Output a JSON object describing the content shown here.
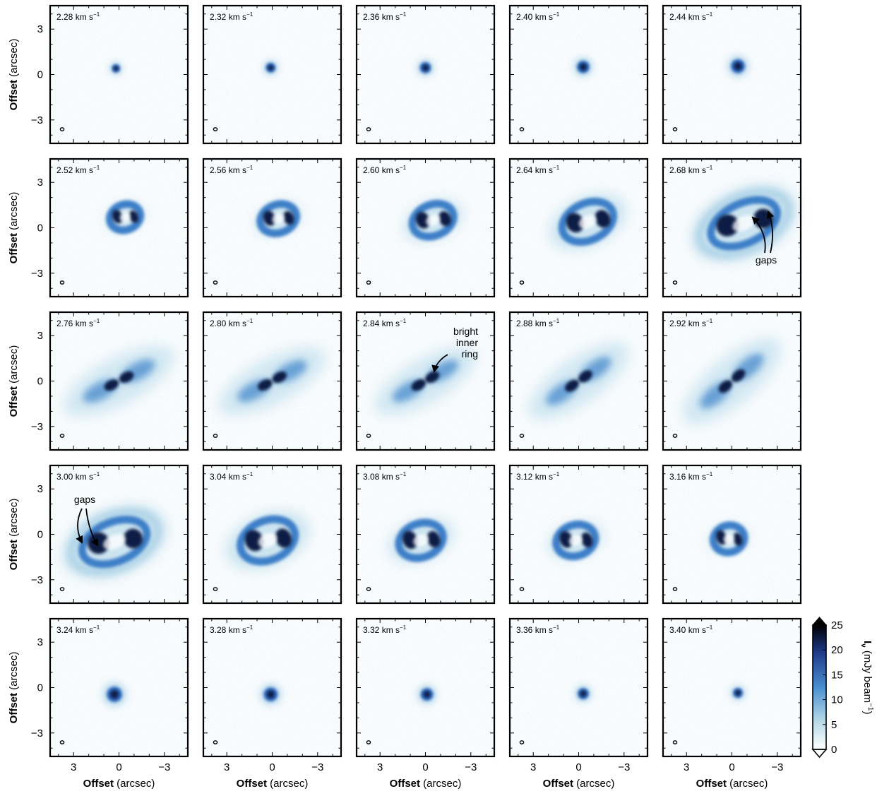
{
  "figure": {
    "velocity_unit_prefix": "km s",
    "velocity_unit_exp": "−1",
    "panels": [
      {
        "velocity": "2.28"
      },
      {
        "velocity": "2.32"
      },
      {
        "velocity": "2.36"
      },
      {
        "velocity": "2.40"
      },
      {
        "velocity": "2.44"
      },
      {
        "velocity": "2.52"
      },
      {
        "velocity": "2.56"
      },
      {
        "velocity": "2.60"
      },
      {
        "velocity": "2.64"
      },
      {
        "velocity": "2.68"
      },
      {
        "velocity": "2.76"
      },
      {
        "velocity": "2.80"
      },
      {
        "velocity": "2.84"
      },
      {
        "velocity": "2.88"
      },
      {
        "velocity": "2.92"
      },
      {
        "velocity": "3.00"
      },
      {
        "velocity": "3.04"
      },
      {
        "velocity": "3.08"
      },
      {
        "velocity": "3.12"
      },
      {
        "velocity": "3.16"
      },
      {
        "velocity": "3.24"
      },
      {
        "velocity": "3.28"
      },
      {
        "velocity": "3.32"
      },
      {
        "velocity": "3.36"
      },
      {
        "velocity": "3.40"
      }
    ],
    "y_axis_label_bold": "Offset",
    "y_axis_label_rest": " (arcsec)",
    "x_axis_label_bold": "Offset",
    "x_axis_label_rest": " (arcsec)",
    "y_ticks": [
      "3",
      "0",
      "−3"
    ],
    "x_ticks": [
      "3",
      "0",
      "−3"
    ],
    "annotations": {
      "gaps_upper": "gaps",
      "gaps_lower": "gaps",
      "ring_line1": "bright",
      "ring_line2": "inner",
      "ring_line3": "ring"
    },
    "colorbar": {
      "label_symbol": "I",
      "label_subscript": "ν",
      "label_unit": "(mJy beam",
      "label_unit_exp": "−1",
      "label_unit_close": ")",
      "ticks": [
        "25",
        "20",
        "15",
        "10",
        "5",
        "0"
      ],
      "range": [
        0,
        25
      ],
      "colors": [
        "#ffffff",
        "#b9dbe8",
        "#4a8fcf",
        "#1f3a8a",
        "#000000"
      ]
    }
  }
}
